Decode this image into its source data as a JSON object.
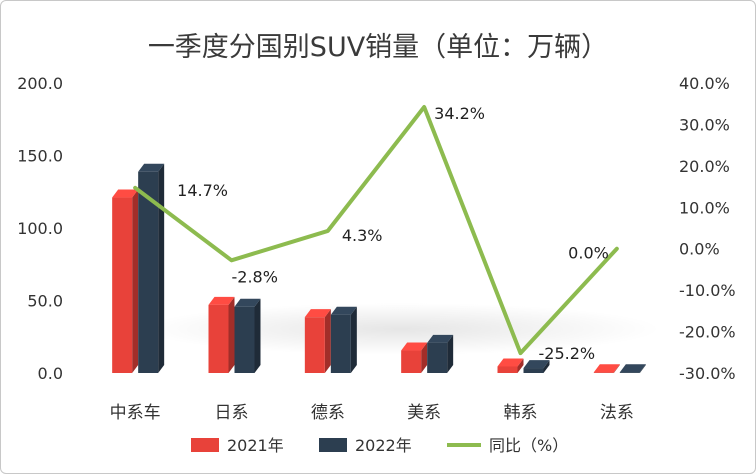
{
  "colors": {
    "series_2021": "#e8423a",
    "series_2022": "#2c3e50",
    "line_yoy": "#8dbb4f",
    "title": "#3a3a3a",
    "text": "#333333"
  },
  "chart_data": {
    "type": "bar",
    "title": "一季度分国别SUV销量（单位：万辆）",
    "categories": [
      "中系车",
      "日系",
      "德系",
      "美系",
      "韩系",
      "法系"
    ],
    "series": [
      {
        "name": "2021年",
        "type": "bar",
        "axis": "left",
        "values": [
          121.0,
          47.0,
          38.5,
          15.5,
          4.5,
          0.5
        ]
      },
      {
        "name": "2022年",
        "type": "bar",
        "axis": "left",
        "values": [
          138.8,
          45.7,
          40.2,
          20.8,
          3.4,
          0.5
        ]
      },
      {
        "name": "同比（%）",
        "type": "line",
        "axis": "right",
        "values": [
          14.7,
          -2.8,
          4.3,
          34.2,
          -25.2,
          0.0
        ]
      }
    ],
    "data_labels": [
      "14.7%",
      "-2.8%",
      "4.3%",
      "34.2%",
      "-25.2%",
      "0.0%"
    ],
    "y_left": {
      "lim": [
        0,
        200
      ],
      "ticks": [
        "0.0",
        "50.0",
        "100.0",
        "150.0",
        "200.0"
      ]
    },
    "y_right": {
      "lim": [
        -30,
        40
      ],
      "ticks": [
        "-30.0%",
        "-20.0%",
        "-10.0%",
        "0.0%",
        "10.0%",
        "20.0%",
        "30.0%",
        "40.0%"
      ]
    },
    "legend_position": "bottom",
    "grid": false
  }
}
